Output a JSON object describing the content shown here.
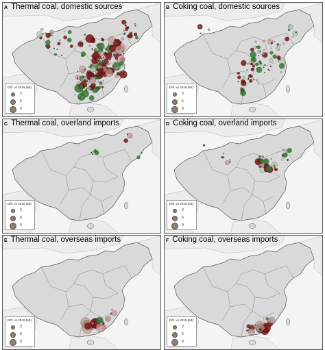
{
  "panels": [
    {
      "id": "a",
      "letter": "A",
      "title": "Thermal coal, domestic sources"
    },
    {
      "id": "b",
      "letter": "B",
      "title": "Coking coal, domestic sources"
    },
    {
      "id": "c",
      "letter": "C",
      "title": "Thermal coal, overland imports"
    },
    {
      "id": "d",
      "letter": "D",
      "title": "Coking coal, overland imports"
    },
    {
      "id": "e",
      "letter": "E",
      "title": "Thermal coal, overseas imports"
    },
    {
      "id": "f",
      "letter": "F",
      "title": "Coking coal, overseas imports"
    }
  ],
  "legend": {
    "title": "Diff. vs 2019 (Mt)",
    "entries": [
      "3",
      "6",
      "9"
    ]
  },
  "colors": {
    "land": "#d9d9d9",
    "border": "#555555",
    "increase": "#2f7a2f",
    "decrease": "#7a1414",
    "increase_light": "#a8c9a8",
    "decrease_light": "#c99595"
  }
}
